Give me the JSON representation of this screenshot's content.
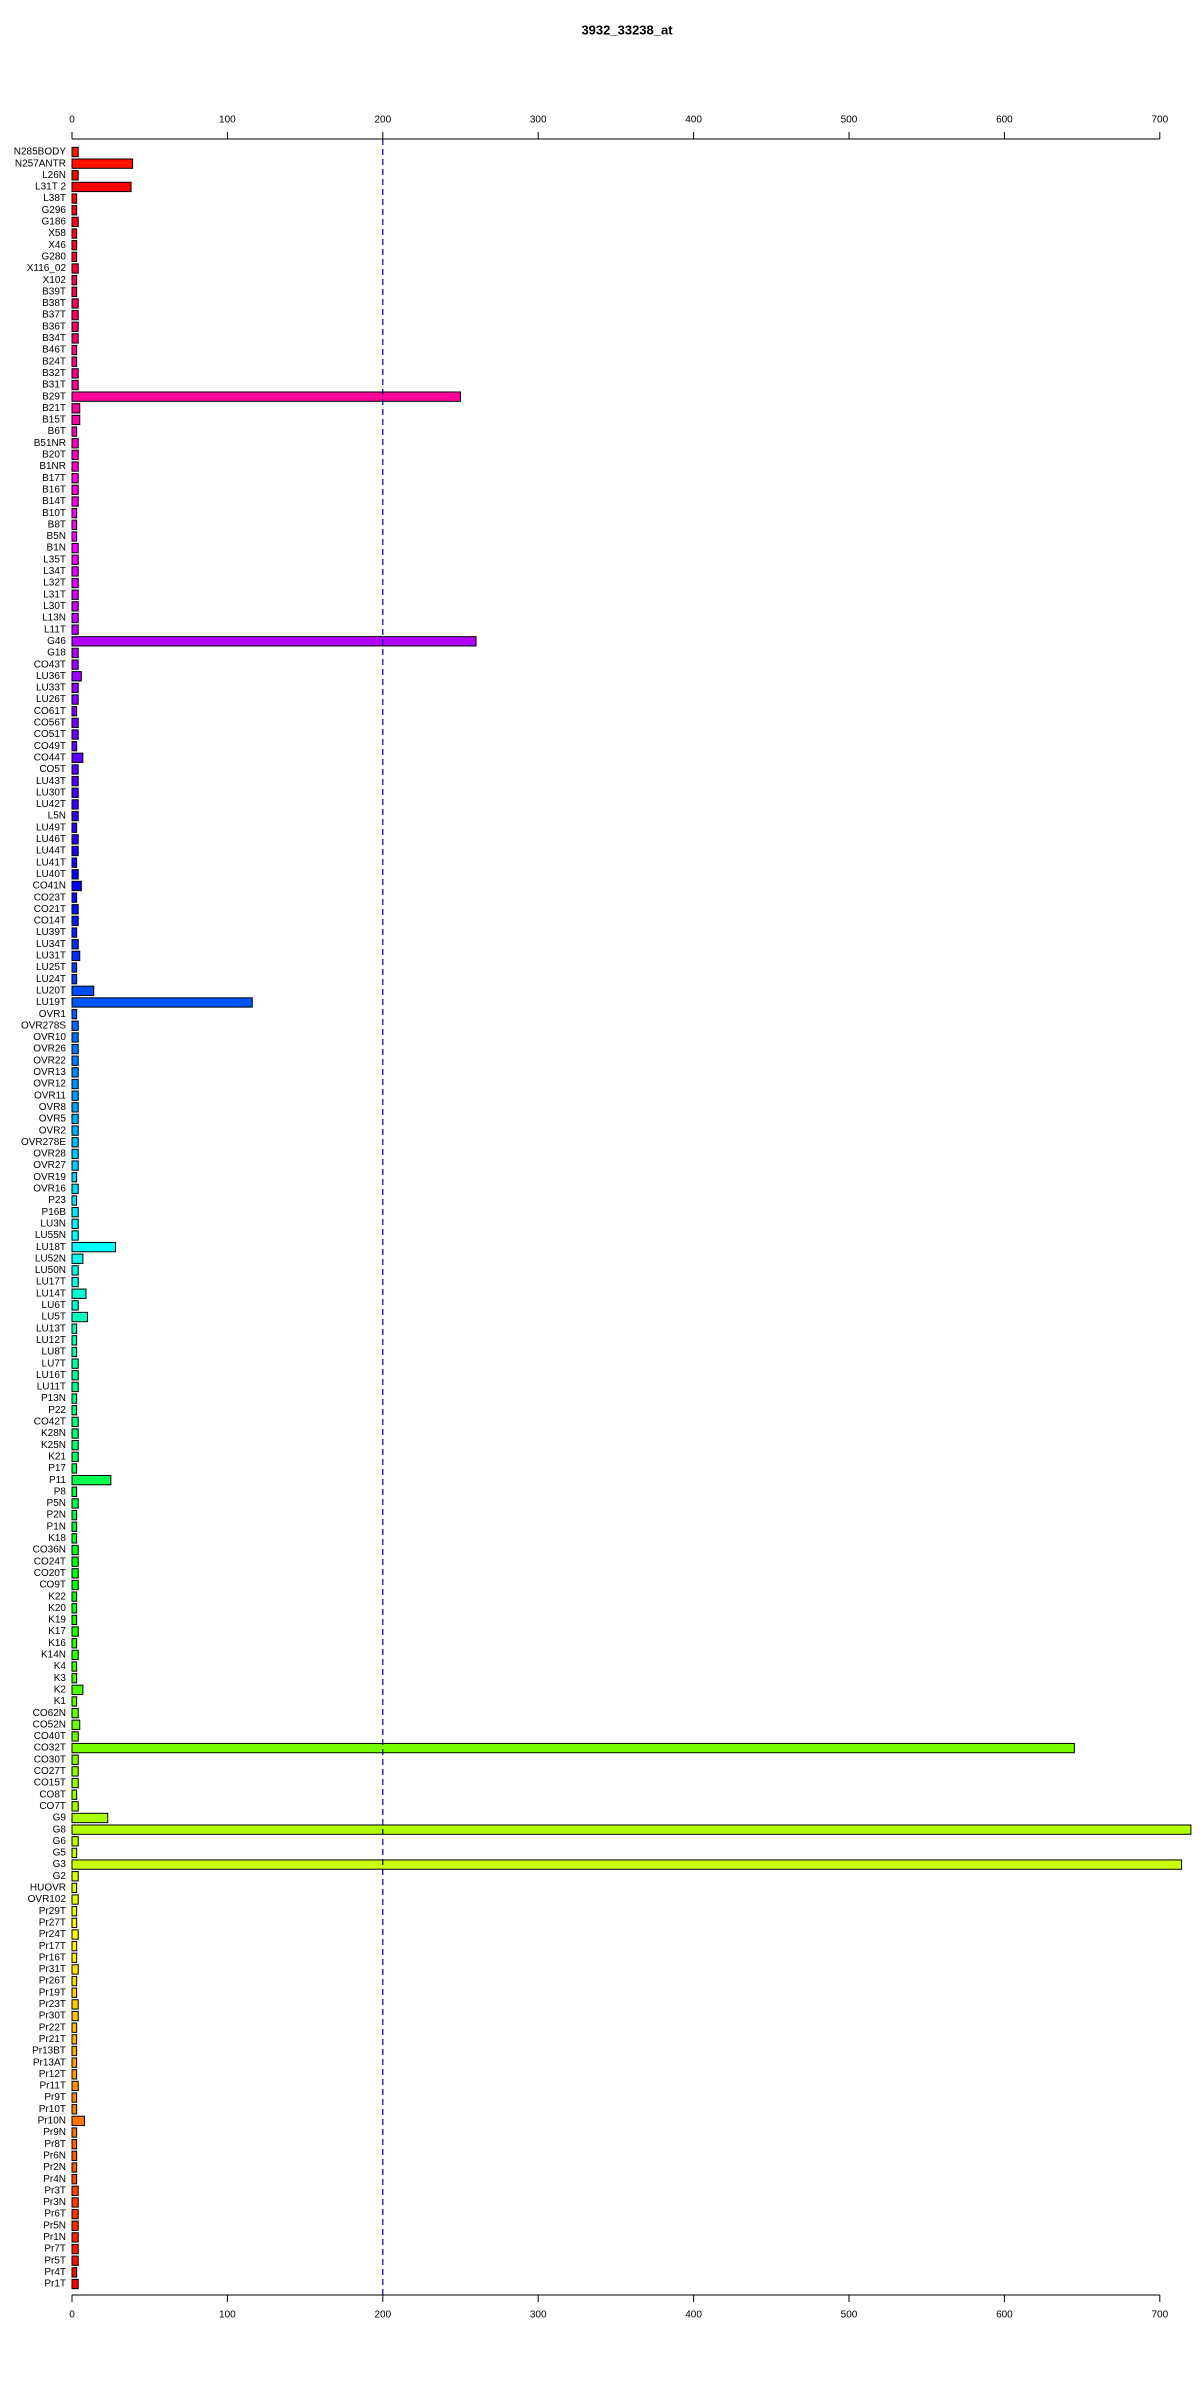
{
  "chart_data": {
    "type": "barh",
    "title": "3932_33238_at",
    "categories": [
      "N285BODY",
      "N257ANTR",
      "L26N",
      "L31T 2",
      "L38T",
      "G296",
      "G186",
      "X58",
      "X46",
      "G280",
      "X116_02",
      "X102",
      "B39T",
      "B38T",
      "B37T",
      "B36T",
      "B34T",
      "B46T",
      "B24T",
      "B32T",
      "B31T",
      "B29T",
      "B21T",
      "B15T",
      "B6T",
      "B51NR",
      "B20T",
      "B1NR",
      "B17T",
      "B16T",
      "B14T",
      "B10T",
      "B8T",
      "B5N",
      "B1N",
      "L35T",
      "L34T",
      "L32T",
      "L31T",
      "L30T",
      "L13N",
      "L11T",
      "G46",
      "G18",
      "CO43T",
      "LU36T",
      "LU33T",
      "LU26T",
      "CO61T",
      "CO56T",
      "CO51T",
      "CO49T",
      "CO44T",
      "CO5T",
      "LU43T",
      "LU30T",
      "LU42T",
      "L5N",
      "LU49T",
      "LU46T",
      "LU44T",
      "LU41T",
      "LU40T",
      "CO41N",
      "CO23T",
      "CO21T",
      "CO14T",
      "LU39T",
      "LU34T",
      "LU31T",
      "LU25T",
      "LU24T",
      "LU20T",
      "LU19T",
      "OVR1",
      "OVR278S",
      "OVR10",
      "OVR26",
      "OVR22",
      "OVR13",
      "OVR12",
      "OVR11",
      "OVR8",
      "OVR5",
      "OVR2",
      "OVR278E",
      "OVR28",
      "OVR27",
      "OVR19",
      "OVR16",
      "P23",
      "P16B",
      "LU3N",
      "LU55N",
      "LU18T",
      "LU52N",
      "LU50N",
      "LU17T",
      "LU14T",
      "LU6T",
      "LU5T",
      "LU13T",
      "LU12T",
      "LU8T",
      "LU7T",
      "LU16T",
      "LU11T",
      "P13N",
      "P22",
      "CO42T",
      "K28N",
      "K25N",
      "K21",
      "P17",
      "P11",
      "P8",
      "P5N",
      "P2N",
      "P1N",
      "K18",
      "CO36N",
      "CO24T",
      "CO20T",
      "CO9T",
      "K22",
      "K20",
      "K19",
      "K17",
      "K16",
      "K14N",
      "K4",
      "K3",
      "K2",
      "K1",
      "CO62N",
      "CO52N",
      "CO40T",
      "CO32T",
      "CO30T",
      "CO27T",
      "CO15T",
      "CO8T",
      "CO7T",
      "G9",
      "G8",
      "G6",
      "G5",
      "G3",
      "G2",
      "HUOVR",
      "OVR102",
      "Pr29T",
      "Pr27T",
      "Pr24T",
      "Pr17T",
      "Pr16T",
      "Pr31T",
      "Pr26T",
      "Pr19T",
      "Pr23T",
      "Pr30T",
      "Pr22T",
      "Pr21T",
      "Pr13BT",
      "Pr13AT",
      "Pr12T",
      "Pr11T",
      "Pr9T",
      "Pr10T",
      "Pr10N",
      "Pr9N",
      "Pr8T",
      "Pr6N",
      "Pr2N",
      "Pr4N",
      "Pr3T",
      "Pr3N",
      "Pr6T",
      "Pr5N",
      "Pr1N",
      "Pr7T",
      "Pr5T",
      "Pr4T",
      "Pr1T"
    ],
    "values": [
      4,
      39,
      4,
      38,
      3,
      3,
      4,
      3,
      3,
      3,
      4,
      3,
      3,
      4,
      4,
      4,
      4,
      3,
      3,
      4,
      4,
      250,
      5,
      5,
      3,
      4,
      4,
      4,
      4,
      4,
      4,
      3,
      3,
      3,
      4,
      4,
      4,
      4,
      4,
      4,
      4,
      4,
      260,
      4,
      4,
      6,
      4,
      4,
      3,
      4,
      4,
      3,
      7,
      4,
      4,
      4,
      4,
      4,
      3,
      4,
      4,
      3,
      4,
      6,
      3,
      4,
      4,
      3,
      4,
      5,
      3,
      3,
      14,
      116,
      3,
      4,
      4,
      4,
      4,
      4,
      4,
      4,
      4,
      4,
      4,
      4,
      4,
      4,
      3,
      4,
      3,
      4,
      4,
      4,
      28,
      7,
      4,
      4,
      9,
      4,
      10,
      3,
      3,
      3,
      4,
      4,
      4,
      3,
      3,
      4,
      4,
      4,
      4,
      3,
      25,
      3,
      4,
      3,
      3,
      3,
      4,
      4,
      4,
      4,
      3,
      3,
      3,
      4,
      3,
      4,
      3,
      3,
      7,
      3,
      4,
      5,
      4,
      645,
      4,
      4,
      4,
      3,
      4,
      23,
      720,
      4,
      3,
      714,
      4,
      3,
      4,
      3,
      3,
      4,
      3,
      3,
      4,
      3,
      3,
      4,
      4,
      3,
      3,
      3,
      3,
      3,
      4,
      3,
      3,
      8,
      3,
      3,
      3,
      3,
      3,
      4,
      4,
      4,
      4,
      4,
      4,
      4,
      3,
      4
    ],
    "colors": [
      "hsl(6,100%,50%)",
      "hsl(4,100%,50%)",
      "hsl(2,100%,50%)",
      "hsl(0,100%,50%)",
      "hsl(358,100%,50%)",
      "hsl(356,100%,50%)",
      "hsl(354,100%,50%)",
      "hsl(352,100%,50%)",
      "hsl(350,100%,50%)",
      "hsl(348,100%,50%)",
      "hsl(346,100%,50%)",
      "hsl(344,100%,50%)",
      "hsl(342,100%,50%)",
      "hsl(340,100%,50%)",
      "hsl(338,100%,50%)",
      "hsl(336,100%,50%)",
      "hsl(334,100%,50%)",
      "hsl(332,100%,50%)",
      "hsl(330,100%,50%)",
      "hsl(328,100%,50%)",
      "hsl(326,100%,50%)",
      "hsl(324,100%,50%)",
      "hsl(322,100%,50%)",
      "hsl(320,100%,50%)",
      "hsl(318,100%,50%)",
      "hsl(316,100%,50%)",
      "hsl(314,100%,50%)",
      "hsl(312,100%,50%)",
      "hsl(310,100%,50%)",
      "hsl(308,100%,50%)",
      "hsl(306,100%,50%)",
      "hsl(304,100%,50%)",
      "hsl(302,100%,50%)",
      "hsl(300,100%,50%)",
      "hsl(298,100%,50%)",
      "hsl(296,100%,50%)",
      "hsl(294,100%,50%)",
      "hsl(292,100%,50%)",
      "hsl(290,100%,50%)",
      "hsl(288,100%,50%)",
      "hsl(286,100%,50%)",
      "hsl(284,100%,50%)",
      "hsl(282,100%,50%)",
      "hsl(280,100%,50%)",
      "hsl(278,100%,50%)",
      "hsl(276,100%,50%)",
      "hsl(274,100%,50%)",
      "hsl(272,100%,50%)",
      "hsl(270,100%,50%)",
      "hsl(268,100%,50%)",
      "hsl(266,100%,50%)",
      "hsl(264,100%,50%)",
      "hsl(262,100%,50%)",
      "hsl(260,100%,50%)",
      "hsl(258,100%,50%)",
      "hsl(256,100%,50%)",
      "hsl(254,100%,50%)",
      "hsl(252,100%,50%)",
      "hsl(250,100%,50%)",
      "hsl(248,100%,50%)",
      "hsl(246,100%,50%)",
      "hsl(244,100%,50%)",
      "hsl(242,100%,50%)",
      "hsl(240,100%,50%)",
      "hsl(238,100%,50%)",
      "hsl(236,100%,50%)",
      "hsl(234,100%,50%)",
      "hsl(232,100%,50%)",
      "hsl(230,100%,50%)",
      "hsl(228,100%,50%)",
      "hsl(226,100%,50%)",
      "hsl(224,100%,50%)",
      "hsl(222,100%,50%)",
      "hsl(220,100%,50%)",
      "hsl(218,100%,50%)",
      "hsl(216,100%,50%)",
      "hsl(214,100%,50%)",
      "hsl(212,100%,50%)",
      "hsl(210,100%,50%)",
      "hsl(208,100%,50%)",
      "hsl(206,100%,50%)",
      "hsl(204,100%,50%)",
      "hsl(202,100%,50%)",
      "hsl(200,100%,50%)",
      "hsl(198,100%,50%)",
      "hsl(196,100%,50%)",
      "hsl(194,100%,50%)",
      "hsl(192,100%,50%)",
      "hsl(190,100%,50%)",
      "hsl(188,100%,50%)",
      "hsl(186,100%,50%)",
      "hsl(184,100%,50%)",
      "hsl(182,100%,50%)",
      "hsl(180,100%,50%)",
      "hsl(178,100%,50%)",
      "hsl(176,100%,50%)",
      "hsl(174,100%,50%)",
      "hsl(172,100%,50%)",
      "hsl(170,100%,50%)",
      "hsl(168,100%,50%)",
      "hsl(166,100%,50%)",
      "hsl(164,100%,50%)",
      "hsl(162,100%,50%)",
      "hsl(160,100%,50%)",
      "hsl(158,100%,50%)",
      "hsl(156,100%,50%)",
      "hsl(154,100%,50%)",
      "hsl(152,100%,50%)",
      "hsl(150,100%,50%)",
      "hsl(148,100%,50%)",
      "hsl(146,100%,50%)",
      "hsl(144,100%,50%)",
      "hsl(142,100%,50%)",
      "hsl(140,100%,50%)",
      "hsl(138,100%,50%)",
      "hsl(136,100%,50%)",
      "hsl(134,100%,50%)",
      "hsl(132,100%,50%)",
      "hsl(130,100%,50%)",
      "hsl(128,100%,50%)",
      "hsl(126,100%,50%)",
      "hsl(124,100%,50%)",
      "hsl(122,100%,50%)",
      "hsl(120,100%,50%)",
      "hsl(118,100%,50%)",
      "hsl(116,100%,50%)",
      "hsl(114,100%,50%)",
      "hsl(112,100%,50%)",
      "hsl(110,100%,50%)",
      "hsl(108,100%,50%)",
      "hsl(106,100%,50%)",
      "hsl(104,100%,50%)",
      "hsl(102,100%,50%)",
      "hsl(100,100%,50%)",
      "hsl(98,100%,50%)",
      "hsl(96,100%,50%)",
      "hsl(94,100%,50%)",
      "hsl(92,100%,50%)",
      "hsl(90,100%,50%)",
      "hsl(88,100%,50%)",
      "hsl(86,100%,50%)",
      "hsl(84,100%,50%)",
      "hsl(82,100%,50%)",
      "hsl(80,100%,50%)",
      "hsl(78,100%,50%)",
      "hsl(76,100%,50%)",
      "hsl(74,100%,50%)",
      "hsl(72,100%,50%)",
      "hsl(70,100%,50%)",
      "hsl(68,100%,50%)",
      "hsl(66,100%,50%)",
      "hsl(64,100%,50%)",
      "hsl(62,100%,50%)",
      "hsl(60,100%,50%)",
      "hsl(58,100%,50%)",
      "hsl(56,100%,50%)",
      "hsl(54,100%,50%)",
      "hsl(52,100%,50%)",
      "hsl(50,100%,50%)",
      "hsl(48,100%,50%)",
      "hsl(46,100%,50%)",
      "hsl(44,100%,50%)",
      "hsl(42,100%,50%)",
      "hsl(40,100%,50%)",
      "hsl(38,100%,50%)",
      "hsl(36,100%,50%)",
      "hsl(34,100%,50%)",
      "hsl(32,100%,50%)",
      "hsl(30,100%,50%)",
      "hsl(28,100%,50%)",
      "hsl(26,100%,50%)",
      "hsl(24,100%,50%)",
      "hsl(22,100%,50%)",
      "hsl(20,100%,50%)",
      "hsl(18,100%,50%)",
      "hsl(16,100%,50%)",
      "hsl(14,100%,50%)",
      "hsl(12,100%,50%)",
      "hsl(10,100%,50%)",
      "hsl(8,100%,50%)",
      "hsl(6,100%,50%)",
      "hsl(4,100%,50%)",
      "hsl(2,100%,50%)",
      "hsl(0,100%,50%)"
    ],
    "xlim": [
      0,
      722
    ],
    "xticks": [
      0,
      100,
      200,
      300,
      400,
      500,
      600,
      700
    ],
    "reference_line": 200,
    "reference_line_color": "#00008b"
  }
}
